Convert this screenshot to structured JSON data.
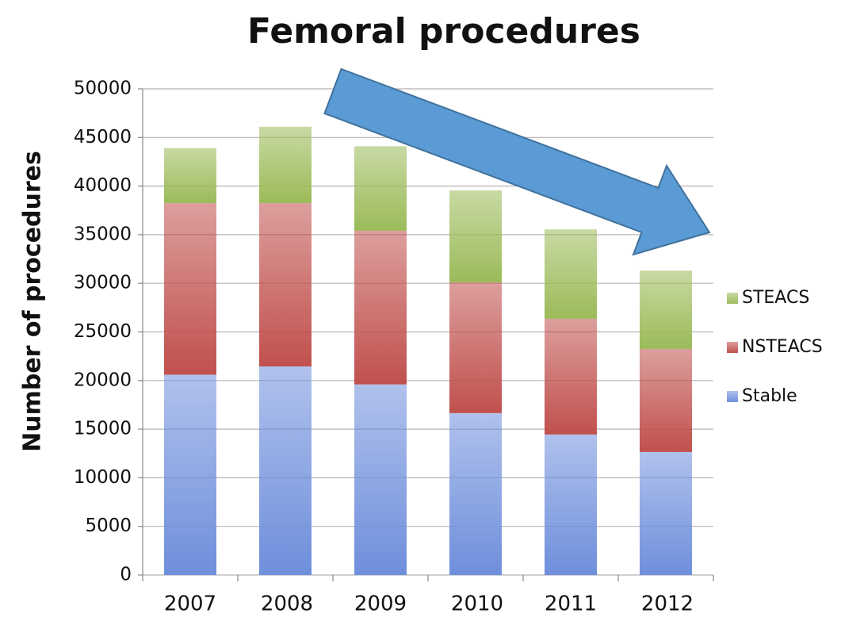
{
  "chart_data": {
    "type": "stacked_bar",
    "title": "Femoral procedures",
    "y_label": "Number of procedures",
    "categories": [
      "2007",
      "2008",
      "2009",
      "2010",
      "2011",
      "2012"
    ],
    "series": [
      {
        "name": "Stable",
        "color": "#6f8fdc",
        "values": [
          20600,
          21450,
          19600,
          16650,
          14450,
          12650
        ]
      },
      {
        "name": "NSTEACS",
        "color": "#c0504d",
        "values": [
          17650,
          16800,
          15800,
          13450,
          11900,
          10600
        ]
      },
      {
        "name": "STEACS",
        "color": "#9bbb59",
        "values": [
          5650,
          7850,
          8700,
          9450,
          9200,
          8050
        ]
      }
    ],
    "ylim": [
      0,
      50000
    ],
    "yticks": [
      0,
      5000,
      10000,
      15000,
      20000,
      25000,
      30000,
      35000,
      40000,
      45000,
      50000
    ],
    "grid": true,
    "legend": "right"
  }
}
